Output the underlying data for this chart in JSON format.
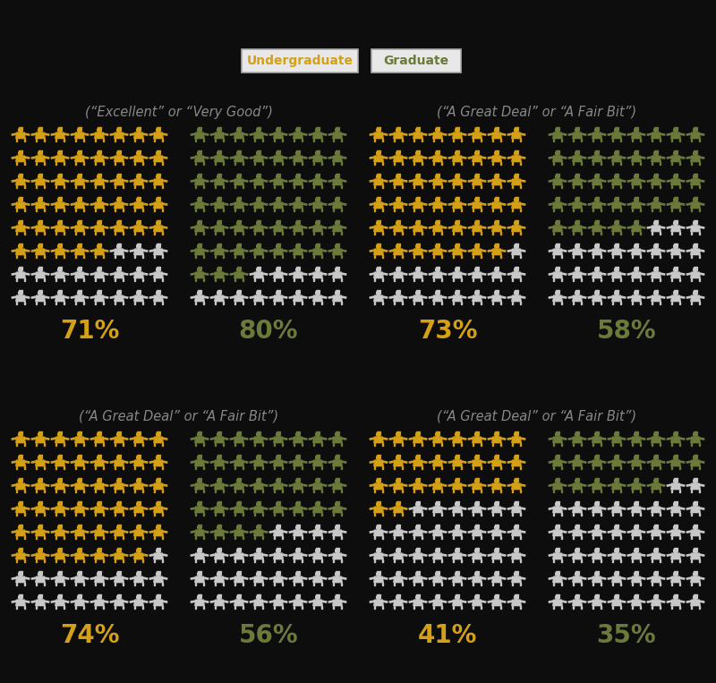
{
  "background_color": "#0d0d0d",
  "undergraduate_color": "#D4A017",
  "graduate_color": "#6B7A3A",
  "inactive_color": "#C8C8C8",
  "legend_bg": "#e8e8e8",
  "legend_border": "#aaaaaa",
  "sections": [
    {
      "label": "(“Excellent” or “Very Good”)",
      "ug_pct": 71,
      "grad_pct": 80,
      "row": 0,
      "col": 0
    },
    {
      "label": "(“A Great Deal” or “A Fair Bit”)",
      "ug_pct": 73,
      "grad_pct": 58,
      "row": 0,
      "col": 1
    },
    {
      "label": "(“A Great Deal” or “A Fair Bit”)",
      "ug_pct": 74,
      "grad_pct": 56,
      "row": 1,
      "col": 0
    },
    {
      "label": "(“A Great Deal” or “A Fair Bit”)",
      "ug_pct": 41,
      "grad_pct": 35,
      "row": 1,
      "col": 1
    }
  ],
  "n_cols": 8,
  "n_rows": 8,
  "legend_labels": [
    "Undergraduate",
    "Graduate"
  ],
  "pct_fontsize": 20,
  "label_fontsize": 10.5,
  "legend_fontsize": 10
}
